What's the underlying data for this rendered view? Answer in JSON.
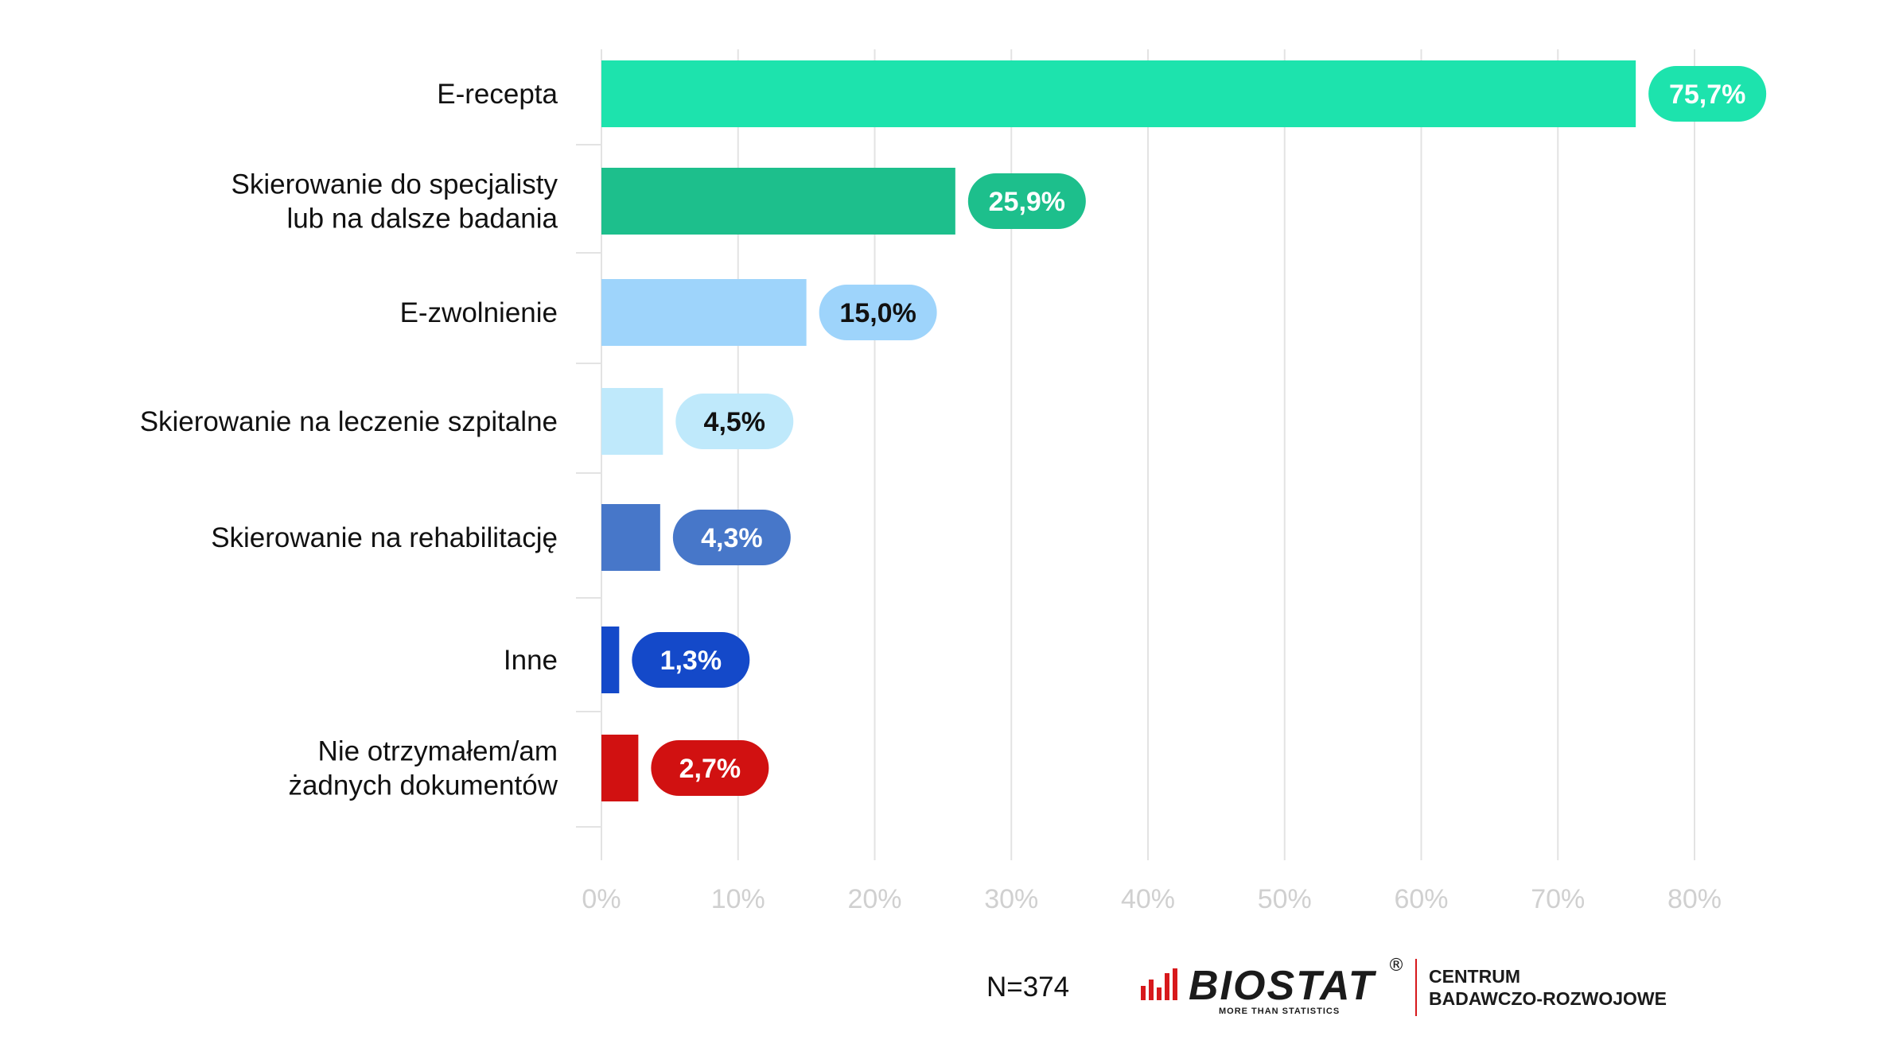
{
  "chart_data": {
    "type": "bar",
    "orientation": "horizontal",
    "categories": [
      [
        "E-recepta"
      ],
      [
        "Skierowanie do specjalisty",
        "lub na dalsze badania"
      ],
      [
        "E-zwolnienie"
      ],
      [
        "Skierowanie na leczenie szpitalne"
      ],
      [
        "Skierowanie na rehabilitację"
      ],
      [
        "Inne"
      ],
      [
        "Nie otrzymałem/am",
        "żadnych dokumentów"
      ]
    ],
    "values": [
      75.7,
      25.9,
      15.0,
      4.5,
      4.3,
      1.3,
      2.7
    ],
    "value_labels": [
      "75,7%",
      "25,9%",
      "15,0%",
      "4,5%",
      "4,3%",
      "1,3%",
      "2,7%"
    ],
    "bar_colors": [
      "#1de3ad",
      "#1dbf8c",
      "#9ed4fb",
      "#bfe9fb",
      "#4777c9",
      "#1449c9",
      "#d11111"
    ],
    "label_text_colors": [
      "#ffffff",
      "#ffffff",
      "#111111",
      "#111111",
      "#ffffff",
      "#ffffff",
      "#ffffff"
    ],
    "x_ticks": [
      0,
      10,
      20,
      30,
      40,
      50,
      60,
      70,
      80
    ],
    "x_tick_labels": [
      "0%",
      "10%",
      "20%",
      "30%",
      "40%",
      "50%",
      "60%",
      "70%",
      "80%"
    ],
    "xlim": [
      0,
      80
    ],
    "grid": true,
    "title": "",
    "xlabel": "",
    "ylabel": ""
  },
  "footer": {
    "sample_size": "N=374",
    "logo_text": "BIOSTAT",
    "logo_reg": "®",
    "logo_tagline": "MORE THAN STATISTICS",
    "centrum_line1": "CENTRUM",
    "centrum_line2": "BADAWCZO-ROZWOJOWE"
  },
  "colors": {
    "grid": "#e3e3e3",
    "tick_text": "#d0d0d0",
    "logo_accent": "#d7191c"
  }
}
